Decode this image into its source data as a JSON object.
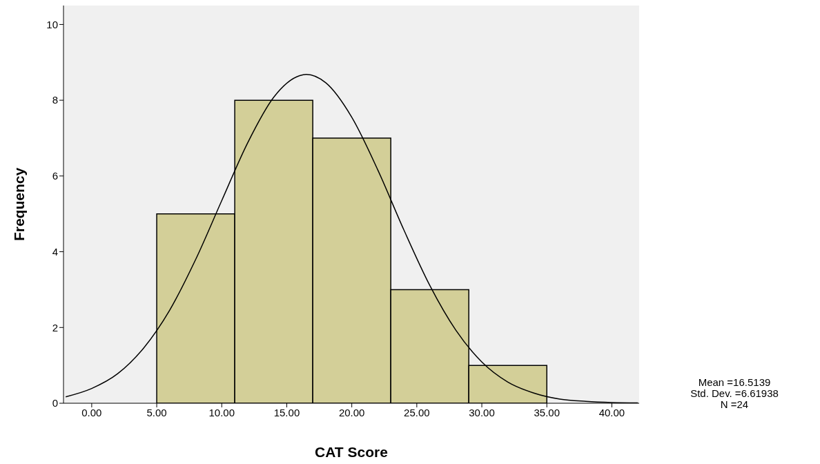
{
  "chart_data": {
    "type": "histogram",
    "xlabel": "CAT Score",
    "ylabel": "Frequency",
    "bins": [
      5,
      11,
      17,
      23,
      29,
      35
    ],
    "values": [
      5,
      8,
      7,
      3,
      1
    ],
    "color": "#d3cf98",
    "series": [
      {
        "type": "line",
        "color": "#000000",
        "x": [
          -2,
          0,
          2,
          4,
          6,
          8,
          10,
          12,
          14,
          16,
          16.5,
          18,
          20,
          22,
          24,
          26,
          28,
          30,
          32,
          34,
          36,
          38,
          40,
          42
        ],
        "values": [
          0.17,
          0.39,
          0.78,
          1.46,
          2.46,
          3.8,
          5.35,
          6.88,
          8.08,
          8.65,
          8.68,
          8.46,
          7.55,
          6.16,
          4.58,
          3.11,
          1.93,
          1.09,
          0.56,
          0.27,
          0.11,
          0.05,
          0.02,
          0.01
        ]
      }
    ],
    "xlim": [
      -2.17,
      42.1
    ],
    "xticks": [
      {
        "value": 0,
        "label": "0.00"
      },
      {
        "value": 5,
        "label": "5.00"
      },
      {
        "value": 10,
        "label": "10.00"
      },
      {
        "value": 15,
        "label": "15.00"
      },
      {
        "value": 20,
        "label": "20.00"
      },
      {
        "value": 25,
        "label": "25.00"
      },
      {
        "value": 30,
        "label": "30.00"
      },
      {
        "value": 35,
        "label": "35.00"
      },
      {
        "value": 40,
        "label": "40.00"
      }
    ],
    "ylim": [
      0,
      10.5
    ],
    "yticks": [
      0,
      2,
      4,
      6,
      8,
      10
    ],
    "annotations": [
      "Mean =16.5139",
      "Std. Dev. =6.61938",
      "N =24"
    ]
  }
}
